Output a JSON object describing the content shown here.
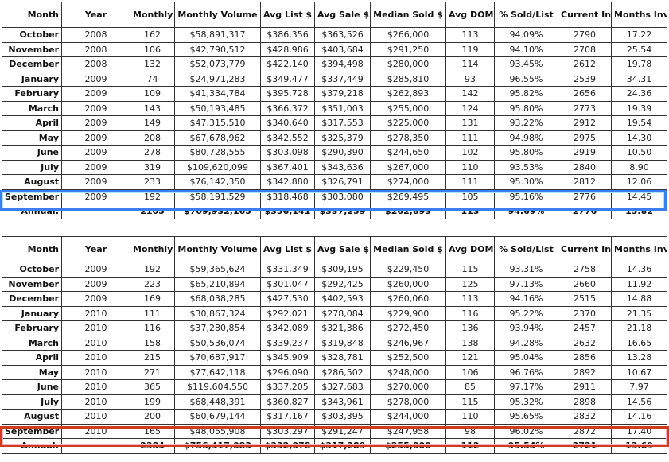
{
  "columns": [
    "Month",
    "Year",
    "Monthly Sales",
    "Monthly Volume",
    "Avg List $",
    "Avg Sale $",
    "Median Sold $",
    "Avg DOM",
    "% Sold/List",
    "Current Inventory",
    "Months Inventory"
  ],
  "highlight_colors": {
    "table1": "#3a7ef0",
    "table2": "#d03c1e"
  },
  "tables": [
    {
      "rows": [
        [
          "October",
          "2008",
          "162",
          "$58,891,317",
          "$386,356",
          "$363,526",
          "$266,000",
          "113",
          "94.09%",
          "2790",
          "17.22"
        ],
        [
          "November",
          "2008",
          "106",
          "$42,790,512",
          "$428,986",
          "$403,684",
          "$291,250",
          "119",
          "94.10%",
          "2708",
          "25.54"
        ],
        [
          "December",
          "2008",
          "132",
          "$52,073,779",
          "$422,140",
          "$394,498",
          "$280,000",
          "114",
          "93.45%",
          "2612",
          "19.78"
        ],
        [
          "January",
          "2009",
          "74",
          "$24,971,283",
          "$349,477",
          "$337,449",
          "$285,810",
          "93",
          "96.55%",
          "2539",
          "34.31"
        ],
        [
          "February",
          "2009",
          "109",
          "$41,334,784",
          "$395,728",
          "$379,218",
          "$262,893",
          "142",
          "95.82%",
          "2656",
          "24.36"
        ],
        [
          "March",
          "2009",
          "143",
          "$50,193,485",
          "$366,372",
          "$351,003",
          "$255,000",
          "124",
          "95.80%",
          "2773",
          "19.39"
        ],
        [
          "April",
          "2009",
          "149",
          "$47,315,510",
          "$340,640",
          "$317,553",
          "$225,000",
          "131",
          "93.22%",
          "2912",
          "19.54"
        ],
        [
          "May",
          "2009",
          "208",
          "$67,678,962",
          "$342,552",
          "$325,379",
          "$278,350",
          "111",
          "94.98%",
          "2975",
          "14.30"
        ],
        [
          "June",
          "2009",
          "278",
          "$80,728,555",
          "$303,098",
          "$290,390",
          "$244,650",
          "102",
          "95.80%",
          "2919",
          "10.50"
        ],
        [
          "July",
          "2009",
          "319",
          "$109,620,099",
          "$367,401",
          "$343,636",
          "$267,000",
          "110",
          "93.53%",
          "2840",
          "8.90"
        ],
        [
          "August",
          "2009",
          "233",
          "$76,142,350",
          "$342,880",
          "$326,791",
          "$274,000",
          "111",
          "95.30%",
          "2812",
          "12.06"
        ],
        [
          "September",
          "2009",
          "192",
          "$58,191,529",
          "$318,468",
          "$303,080",
          "$269,495",
          "105",
          "95.16%",
          "2776",
          "14.45"
        ]
      ],
      "total": [
        "Annual:",
        "",
        "2105",
        "$709,932,165",
        "$356,141",
        "$337,259",
        "$262,893",
        "113",
        "94.69%",
        "2776",
        "15.82"
      ]
    },
    {
      "rows": [
        [
          "October",
          "2009",
          "192",
          "$59,365,624",
          "$331,349",
          "$309,195",
          "$229,450",
          "115",
          "93.31%",
          "2758",
          "14.36"
        ],
        [
          "November",
          "2009",
          "223",
          "$65,210,894",
          "$301,047",
          "$292,425",
          "$260,000",
          "125",
          "97.13%",
          "2660",
          "11.92"
        ],
        [
          "December",
          "2009",
          "169",
          "$68,038,285",
          "$427,530",
          "$402,593",
          "$260,060",
          "113",
          "94.16%",
          "2515",
          "14.88"
        ],
        [
          "January",
          "2010",
          "111",
          "$30,867,324",
          "$292,021",
          "$278,084",
          "$229,900",
          "116",
          "95.22%",
          "2370",
          "21.35"
        ],
        [
          "February",
          "2010",
          "116",
          "$37,280,854",
          "$342,089",
          "$321,386",
          "$272,450",
          "136",
          "93.94%",
          "2457",
          "21.18"
        ],
        [
          "March",
          "2010",
          "158",
          "$50,536,074",
          "$339,237",
          "$319,848",
          "$246,967",
          "138",
          "94.28%",
          "2632",
          "16.65"
        ],
        [
          "April",
          "2010",
          "215",
          "$70,687,917",
          "$345,909",
          "$328,781",
          "$252,500",
          "121",
          "95.04%",
          "2856",
          "13.28"
        ],
        [
          "May",
          "2010",
          "271",
          "$77,642,118",
          "$296,090",
          "$286,502",
          "$248,000",
          "106",
          "96.76%",
          "2892",
          "10.67"
        ],
        [
          "June",
          "2010",
          "365",
          "$119,604,550",
          "$337,205",
          "$327,683",
          "$270,000",
          "85",
          "97.17%",
          "2911",
          "7.97"
        ],
        [
          "July",
          "2010",
          "199",
          "$68,448,391",
          "$360,827",
          "$343,961",
          "$278,000",
          "115",
          "95.32%",
          "2898",
          "14.56"
        ],
        [
          "August",
          "2010",
          "200",
          "$60,679,144",
          "$317,167",
          "$303,395",
          "$244,000",
          "110",
          "95.65%",
          "2832",
          "14.16"
        ],
        [
          "September",
          "2010",
          "165",
          "$48,055,908",
          "$303,297",
          "$291,247",
          "$247,958",
          "98",
          "96.02%",
          "2872",
          "17.40"
        ]
      ],
      "total": [
        "Annual:",
        "",
        "2384",
        "$756,417,083",
        "$332,078",
        "$317,289",
        "$255,000",
        "112",
        "95.54%",
        "2721",
        "13.69"
      ]
    }
  ]
}
